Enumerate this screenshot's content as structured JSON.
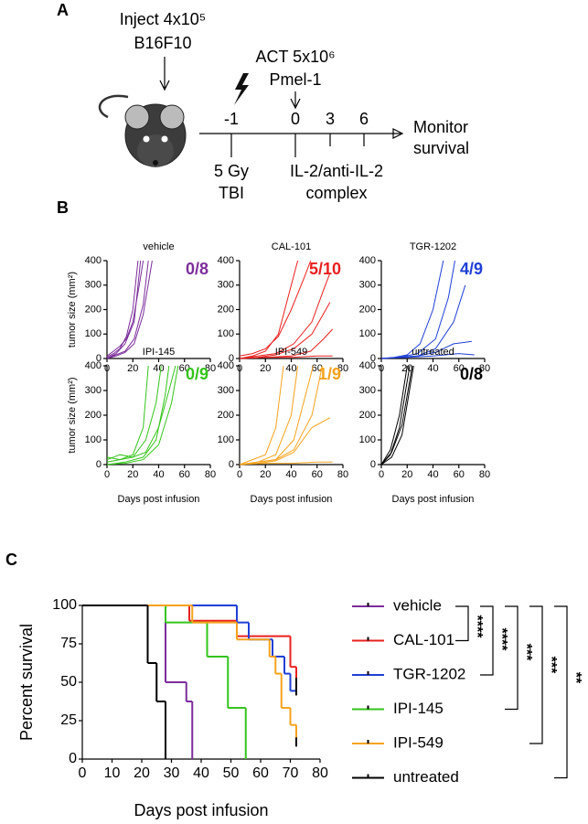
{
  "panel_labels": [
    "A",
    "B",
    "C"
  ],
  "diagram": {
    "inject": [
      "Inject 4x10⁵",
      "B16F10"
    ],
    "act": [
      "ACT 5x10⁶",
      "Pmel-1"
    ],
    "timepoints": [
      -1,
      0,
      3,
      6
    ],
    "tbi": [
      "5 Gy",
      "TBI"
    ],
    "complex": [
      "IL-2/anti-IL-2",
      "complex"
    ],
    "monitor": [
      "Monitor",
      "survival"
    ]
  },
  "chart_data": [
    {
      "type": "line",
      "title": "vehicle",
      "annotation": "0/8",
      "color": "#7b2d9a",
      "ylabel": "tumor size (mm²)",
      "xlim": [
        0,
        80
      ],
      "xticks": [
        0,
        20,
        40,
        60,
        80
      ],
      "ylim": [
        0,
        400
      ],
      "yticks": [
        0,
        100,
        200,
        300,
        400
      ],
      "series": [
        {
          "x": [
            0,
            5,
            10,
            15,
            20,
            24
          ],
          "values": [
            5,
            20,
            40,
            90,
            200,
            400
          ]
        },
        {
          "x": [
            0,
            5,
            10,
            15,
            20,
            25,
            28
          ],
          "values": [
            10,
            30,
            50,
            80,
            150,
            300,
            400
          ]
        },
        {
          "x": [
            0,
            7,
            14,
            21,
            28,
            32
          ],
          "values": [
            0,
            15,
            30,
            80,
            220,
            400
          ]
        },
        {
          "x": [
            0,
            7,
            14,
            21,
            28,
            35
          ],
          "values": [
            0,
            10,
            25,
            60,
            180,
            400
          ]
        },
        {
          "x": [
            0,
            7,
            14,
            21,
            26
          ],
          "values": [
            0,
            20,
            60,
            150,
            400
          ]
        }
      ]
    },
    {
      "type": "line",
      "title": "CAL-101",
      "annotation": "5/10",
      "color": "#e8201e",
      "xlim": [
        0,
        80
      ],
      "xticks": [
        0,
        20,
        40,
        60,
        80
      ],
      "ylim": [
        0,
        400
      ],
      "yticks": [
        0,
        100,
        200,
        300,
        400
      ],
      "series": [
        {
          "x": [
            0,
            10,
            20,
            30,
            40,
            45
          ],
          "values": [
            0,
            10,
            30,
            100,
            300,
            400
          ]
        },
        {
          "x": [
            0,
            10,
            20,
            30,
            40,
            50,
            55
          ],
          "values": [
            10,
            20,
            40,
            90,
            200,
            330,
            400
          ]
        },
        {
          "x": [
            0,
            14,
            28,
            42,
            56,
            65,
            70
          ],
          "values": [
            0,
            10,
            20,
            60,
            150,
            280,
            350
          ]
        },
        {
          "x": [
            0,
            14,
            28,
            42,
            56,
            70
          ],
          "values": [
            0,
            5,
            15,
            40,
            100,
            230
          ]
        },
        {
          "x": [
            0,
            20,
            40,
            55,
            65,
            72
          ],
          "values": [
            0,
            5,
            10,
            30,
            80,
            120
          ]
        },
        {
          "x": [
            0,
            20,
            40,
            60,
            72
          ],
          "values": [
            0,
            5,
            5,
            10,
            10
          ]
        }
      ]
    },
    {
      "type": "line",
      "title": "TGR-1202",
      "annotation": "4/9",
      "color": "#1f3fd6",
      "xlim": [
        0,
        80
      ],
      "xticks": [
        0,
        20,
        40,
        60,
        80
      ],
      "ylim": [
        0,
        400
      ],
      "yticks": [
        0,
        100,
        200,
        300,
        400
      ],
      "series": [
        {
          "x": [
            0,
            10,
            20,
            30,
            40,
            48
          ],
          "values": [
            0,
            5,
            15,
            60,
            200,
            400
          ]
        },
        {
          "x": [
            0,
            14,
            28,
            42,
            52,
            57
          ],
          "values": [
            0,
            5,
            20,
            80,
            250,
            400
          ]
        },
        {
          "x": [
            0,
            14,
            28,
            42,
            56,
            65
          ],
          "values": [
            0,
            5,
            10,
            40,
            150,
            300
          ]
        },
        {
          "x": [
            0,
            14,
            28,
            42,
            56,
            70
          ],
          "values": [
            0,
            5,
            10,
            25,
            60,
            70
          ]
        },
        {
          "x": [
            0,
            20,
            40,
            60,
            72
          ],
          "values": [
            0,
            5,
            10,
            20,
            15
          ]
        }
      ]
    },
    {
      "type": "line",
      "title": "IPI-145",
      "annotation": "0/9",
      "color": "#33c41a",
      "ylabel": "tumor size (mm²)",
      "xlabel": "Days post infusion",
      "xlim": [
        0,
        80
      ],
      "xticks": [
        0,
        20,
        40,
        60,
        80
      ],
      "ylim": [
        0,
        400
      ],
      "yticks": [
        0,
        100,
        200,
        300,
        400
      ],
      "series": [
        {
          "x": [
            0,
            10,
            20,
            28,
            32
          ],
          "values": [
            10,
            20,
            40,
            150,
            400
          ]
        },
        {
          "x": [
            0,
            10,
            20,
            30,
            38,
            42
          ],
          "values": [
            30,
            20,
            30,
            100,
            250,
            400
          ]
        },
        {
          "x": [
            0,
            14,
            28,
            38,
            45,
            48
          ],
          "values": [
            0,
            10,
            30,
            100,
            280,
            400
          ]
        },
        {
          "x": [
            0,
            14,
            28,
            40,
            50,
            55
          ],
          "values": [
            0,
            5,
            20,
            80,
            250,
            400
          ]
        },
        {
          "x": [
            0,
            10,
            20,
            30,
            40,
            48,
            53
          ],
          "values": [
            20,
            40,
            30,
            50,
            150,
            300,
            400
          ]
        }
      ]
    },
    {
      "type": "line",
      "title": "IPI-549",
      "annotation": "1/9",
      "color": "#f5a21b",
      "xlabel": "Days post infusion",
      "xlim": [
        0,
        80
      ],
      "xticks": [
        0,
        20,
        40,
        60,
        80
      ],
      "ylim": [
        0,
        400
      ],
      "yticks": [
        0,
        100,
        200,
        300,
        400
      ],
      "series": [
        {
          "x": [
            0,
            10,
            20,
            28,
            34
          ],
          "values": [
            0,
            20,
            40,
            150,
            400
          ]
        },
        {
          "x": [
            0,
            14,
            28,
            40,
            45
          ],
          "values": [
            0,
            10,
            40,
            200,
            400
          ]
        },
        {
          "x": [
            0,
            14,
            28,
            42,
            52,
            57
          ],
          "values": [
            0,
            10,
            20,
            100,
            300,
            400
          ]
        },
        {
          "x": [
            0,
            14,
            28,
            42,
            56,
            64
          ],
          "values": [
            0,
            10,
            20,
            60,
            200,
            400
          ]
        },
        {
          "x": [
            0,
            14,
            28,
            42,
            56,
            70
          ],
          "values": [
            0,
            5,
            15,
            50,
            150,
            190
          ]
        },
        {
          "x": [
            0,
            20,
            40,
            60,
            72
          ],
          "values": [
            0,
            5,
            5,
            10,
            10
          ]
        }
      ]
    },
    {
      "type": "line",
      "title": "untreated",
      "annotation": "0/8",
      "color": "#000000",
      "xlabel": "Days post infusion",
      "xlim": [
        0,
        80
      ],
      "xticks": [
        0,
        20,
        40,
        60,
        80
      ],
      "ylim": [
        0,
        400
      ],
      "yticks": [
        0,
        100,
        200,
        300,
        400
      ],
      "series": [
        {
          "x": [
            0,
            7,
            14,
            20
          ],
          "values": [
            0,
            60,
            200,
            400
          ]
        },
        {
          "x": [
            0,
            7,
            14,
            22
          ],
          "values": [
            0,
            40,
            150,
            400
          ]
        },
        {
          "x": [
            0,
            8,
            16,
            24
          ],
          "values": [
            0,
            50,
            160,
            400
          ]
        },
        {
          "x": [
            0,
            8,
            16,
            25
          ],
          "values": [
            0,
            30,
            120,
            400
          ]
        }
      ]
    },
    {
      "type": "step",
      "xlabel": "Days post infusion",
      "ylabel": "Percent survival",
      "xlim": [
        0,
        80
      ],
      "xticks": [
        0,
        10,
        20,
        30,
        40,
        50,
        60,
        70,
        80
      ],
      "ylim": [
        0,
        100
      ],
      "yticks": [
        0,
        25,
        50,
        75,
        100
      ],
      "series": [
        {
          "name": "vehicle",
          "color": "#7b2d9a",
          "x": [
            0,
            28,
            35,
            37
          ],
          "values": [
            100,
            50,
            37.5,
            0
          ]
        },
        {
          "name": "CAL-101",
          "color": "#e8201e",
          "x": [
            0,
            36,
            52,
            70,
            72
          ],
          "values": [
            100,
            90,
            80,
            60,
            50
          ]
        },
        {
          "name": "TGR-1202",
          "color": "#1f3fd6",
          "x": [
            0,
            52,
            56,
            64,
            68,
            70,
            72
          ],
          "values": [
            100,
            88.9,
            77.8,
            66.7,
            55.6,
            44.4,
            44.4
          ]
        },
        {
          "name": "IPI-145",
          "color": "#33c41a",
          "x": [
            0,
            28,
            42,
            49,
            55
          ],
          "values": [
            100,
            88.9,
            66.7,
            33.3,
            0
          ]
        },
        {
          "name": "IPI-549",
          "color": "#f5a21b",
          "x": [
            0,
            37,
            52,
            63,
            65,
            67,
            70,
            72
          ],
          "values": [
            100,
            88.9,
            77.8,
            66.7,
            55.6,
            33.3,
            22.2,
            11.1
          ]
        },
        {
          "name": "untreated",
          "color": "#000000",
          "x": [
            0,
            22,
            25,
            28
          ],
          "values": [
            100,
            62.5,
            37.5,
            0
          ]
        }
      ],
      "significance": [
        "****",
        "****",
        "***",
        "***",
        "**"
      ]
    }
  ]
}
